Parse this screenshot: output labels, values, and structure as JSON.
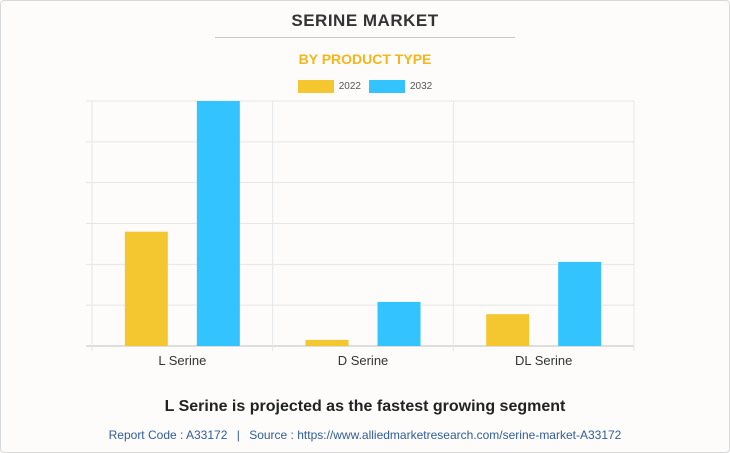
{
  "title": "SERINE MARKET",
  "subtitle": "BY PRODUCT TYPE",
  "headline": "L Serine is projected as the fastest growing segment",
  "footer": {
    "report_code": "Report Code : A33172",
    "separator": "|",
    "source": "Source : https://www.alliedmarketresearch.com/serine-market-A33172"
  },
  "colors": {
    "2022": "#f4c731",
    "2032": "#33c4ff",
    "title": "#333333",
    "subtitle": "#f4b619",
    "footer": "#2f5d9a"
  },
  "chart_data": {
    "type": "bar",
    "categories": [
      "L Serine",
      "D Serine",
      "DL Serine"
    ],
    "series": [
      {
        "name": "2022",
        "values": [
          28,
          1.5,
          7.8
        ]
      },
      {
        "name": "2032",
        "values": [
          60,
          10.8,
          20.6
        ]
      }
    ],
    "ylim": [
      0,
      60
    ],
    "y_gridlines": 6,
    "grid": true,
    "legend": "top-center",
    "xlabel": "",
    "ylabel": ""
  }
}
